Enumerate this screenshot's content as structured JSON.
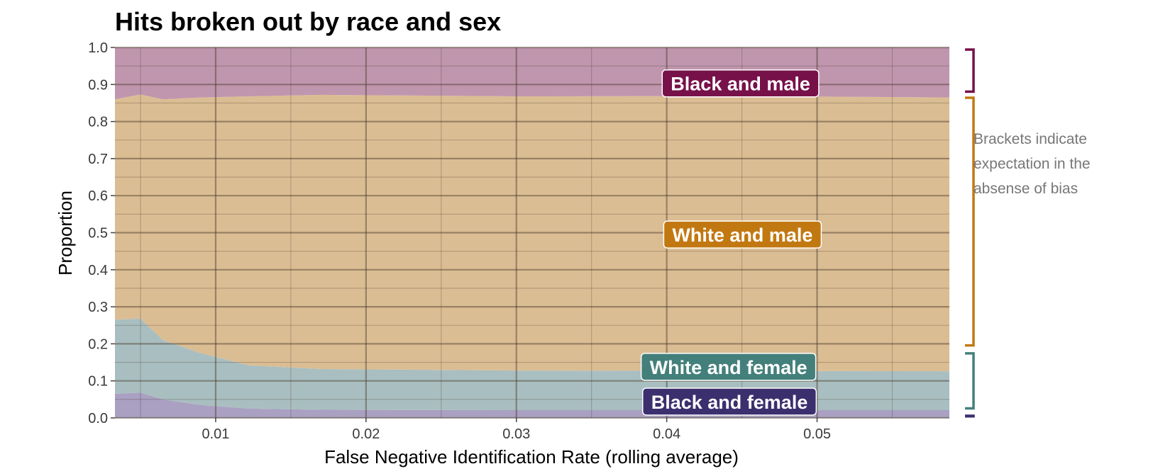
{
  "chart_data": {
    "type": "area",
    "stacked": true,
    "normalized": true,
    "title": "Hits broken out by race and sex",
    "xlabel": "False Negative Identification Rate (rolling average)",
    "ylabel": "Proportion",
    "xlim": [
      0.0033,
      0.0588
    ],
    "ylim": [
      0,
      1.0
    ],
    "x_ticks": [
      0.01,
      0.02,
      0.03,
      0.04,
      0.05
    ],
    "x_tick_labels": [
      "0.01",
      "0.02",
      "0.03",
      "0.04",
      "0.05"
    ],
    "y_ticks": [
      0,
      0.1,
      0.2,
      0.3,
      0.4,
      0.5,
      0.6,
      0.7,
      0.8,
      0.9,
      1.0
    ],
    "y_tick_labels": [
      "0.0",
      "0.1",
      "0.2",
      "0.3",
      "0.4",
      "0.5",
      "0.6",
      "0.7",
      "0.8",
      "0.9",
      "1.0"
    ],
    "grid": true,
    "x": [
      0.0033,
      0.005,
      0.0065,
      0.009,
      0.0122,
      0.017,
      0.03,
      0.045,
      0.0588
    ],
    "series": [
      {
        "name": "Black and female",
        "color": "#3b2f6e",
        "fill": "#a9a0c2",
        "values": [
          0.065,
          0.068,
          0.05,
          0.035,
          0.025,
          0.022,
          0.021,
          0.021,
          0.021
        ]
      },
      {
        "name": "White and female",
        "color": "#44807b",
        "fill": "#a9bec0",
        "values": [
          0.2,
          0.2,
          0.16,
          0.14,
          0.117,
          0.11,
          0.107,
          0.106,
          0.105
        ]
      },
      {
        "name": "White and male",
        "color": "#c27811",
        "fill": "#dbbd94",
        "values": [
          0.595,
          0.605,
          0.65,
          0.69,
          0.726,
          0.74,
          0.74,
          0.742,
          0.739
        ]
      },
      {
        "name": "Black and male",
        "color": "#77114a",
        "fill": "#c096ae",
        "values": [
          0.14,
          0.127,
          0.14,
          0.135,
          0.132,
          0.128,
          0.132,
          0.131,
          0.135
        ]
      }
    ],
    "expected_brackets": [
      {
        "series": "Black and female",
        "range": [
          0.0,
          0.01
        ],
        "color": "#3b2f6e"
      },
      {
        "series": "White and female",
        "range": [
          0.02,
          0.18
        ],
        "color": "#44807b"
      },
      {
        "series": "White and male",
        "range": [
          0.19,
          0.87
        ],
        "color": "#c27811"
      },
      {
        "series": "Black and male",
        "range": [
          0.875,
          1.0
        ],
        "color": "#77114a"
      }
    ],
    "annotation": "Brackets indicate expectation in the absense of bias",
    "annotation_lines": [
      "Brackets indicate",
      "expectation in the",
      "absense of bias"
    ]
  }
}
